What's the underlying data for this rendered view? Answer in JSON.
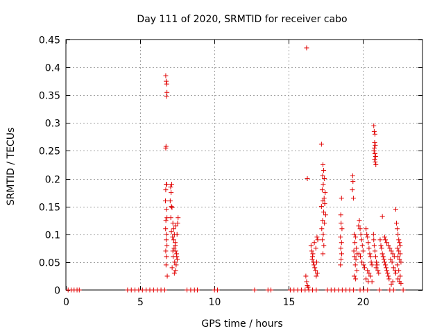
{
  "chart_data": {
    "type": "scatter",
    "title": "Day 111 of 2020, SRMTID for receiver cabo",
    "xlabel": "GPS time / hours",
    "ylabel": "SRMTID / TECUs",
    "xlim": [
      0,
      24
    ],
    "ylim": [
      0,
      0.45
    ],
    "grid": true,
    "x_ticks": [
      0,
      5,
      10,
      15,
      20
    ],
    "x_tick_labels": [
      "0",
      "5",
      "10",
      "15",
      "20"
    ],
    "y_ticks": [
      0,
      0.05,
      0.1,
      0.15,
      0.2,
      0.25,
      0.3,
      0.35,
      0.4,
      0.45
    ],
    "y_tick_labels": [
      "0",
      "0.05",
      "0.1",
      "0.15",
      "0.2",
      "0.25",
      "0.3",
      "0.35",
      "0.4",
      "0.45"
    ],
    "marker": "+",
    "color": "#e00000",
    "series": [
      {
        "name": "SRMTID",
        "points": [
          [
            0.15,
            0
          ],
          [
            0.35,
            0
          ],
          [
            0.55,
            0
          ],
          [
            0.75,
            0
          ],
          [
            0.9,
            0
          ],
          [
            4.15,
            0
          ],
          [
            4.4,
            0
          ],
          [
            4.65,
            0
          ],
          [
            4.9,
            0
          ],
          [
            5.15,
            0
          ],
          [
            5.4,
            0
          ],
          [
            5.65,
            0
          ],
          [
            5.9,
            0
          ],
          [
            6.15,
            0
          ],
          [
            6.4,
            0
          ],
          [
            6.65,
            0
          ],
          [
            8.15,
            0
          ],
          [
            8.4,
            0
          ],
          [
            8.65,
            0
          ],
          [
            8.85,
            0
          ],
          [
            10.0,
            0
          ],
          [
            10.2,
            0
          ],
          [
            12.7,
            0
          ],
          [
            13.6,
            0
          ],
          [
            13.8,
            0
          ],
          [
            15.1,
            0
          ],
          [
            15.35,
            0
          ],
          [
            15.6,
            0
          ],
          [
            15.85,
            0
          ],
          [
            16.1,
            0
          ],
          [
            16.35,
            0
          ],
          [
            16.6,
            0
          ],
          [
            16.85,
            0
          ],
          [
            17.6,
            0
          ],
          [
            17.85,
            0
          ],
          [
            18.1,
            0
          ],
          [
            18.35,
            0
          ],
          [
            18.6,
            0
          ],
          [
            18.85,
            0
          ],
          [
            19.1,
            0
          ],
          [
            19.35,
            0
          ],
          [
            19.8,
            0
          ],
          [
            20.05,
            0
          ],
          [
            20.3,
            0
          ],
          [
            21.1,
            0
          ],
          [
            21.8,
            0
          ],
          [
            22.05,
            0
          ],
          [
            22.7,
            0
          ],
          [
            6.72,
            0.385
          ],
          [
            6.75,
            0.375
          ],
          [
            6.78,
            0.37
          ],
          [
            6.8,
            0.355
          ],
          [
            6.77,
            0.348
          ],
          [
            6.74,
            0.258
          ],
          [
            6.72,
            0.255
          ],
          [
            6.75,
            0.19
          ],
          [
            6.78,
            0.19
          ],
          [
            6.72,
            0.18
          ],
          [
            6.7,
            0.16
          ],
          [
            6.76,
            0.145
          ],
          [
            6.8,
            0.13
          ],
          [
            6.73,
            0.125
          ],
          [
            6.71,
            0.11
          ],
          [
            6.78,
            0.1
          ],
          [
            6.75,
            0.09
          ],
          [
            6.8,
            0.08
          ],
          [
            6.72,
            0.07
          ],
          [
            6.77,
            0.06
          ],
          [
            6.74,
            0.045
          ],
          [
            6.82,
            0.025
          ],
          [
            7.05,
            0.185
          ],
          [
            7.12,
            0.19
          ],
          [
            7.08,
            0.175
          ],
          [
            7.02,
            0.16
          ],
          [
            7.1,
            0.15
          ],
          [
            7.14,
            0.148
          ],
          [
            7.06,
            0.13
          ],
          [
            7.2,
            0.12
          ],
          [
            7.25,
            0.11
          ],
          [
            7.3,
            0.1
          ],
          [
            7.18,
            0.095
          ],
          [
            7.35,
            0.085
          ],
          [
            7.28,
            0.075
          ],
          [
            7.4,
            0.07
          ],
          [
            7.45,
            0.065
          ],
          [
            7.22,
            0.06
          ],
          [
            7.5,
            0.055
          ],
          [
            7.32,
            0.05
          ],
          [
            7.42,
            0.045
          ],
          [
            7.15,
            0.04
          ],
          [
            7.38,
            0.035
          ],
          [
            7.55,
            0.13
          ],
          [
            7.52,
            0.12
          ],
          [
            7.48,
            0.1
          ],
          [
            7.26,
            0.09
          ],
          [
            7.36,
            0.08
          ],
          [
            7.46,
            0.06
          ],
          [
            7.3,
            0.03
          ],
          [
            7.2,
            0.07
          ],
          [
            7.1,
            0.105
          ],
          [
            7.4,
            0.115
          ],
          [
            16.2,
            0.435
          ],
          [
            16.25,
            0.2
          ],
          [
            16.15,
            0.025
          ],
          [
            16.2,
            0.015
          ],
          [
            16.25,
            0.008
          ],
          [
            16.3,
            0.005
          ],
          [
            16.5,
            0.08
          ],
          [
            16.55,
            0.07
          ],
          [
            16.6,
            0.06
          ],
          [
            16.65,
            0.05
          ],
          [
            16.7,
            0.045
          ],
          [
            16.75,
            0.04
          ],
          [
            16.8,
            0.035
          ],
          [
            16.85,
            0.025
          ],
          [
            16.9,
            0.095
          ],
          [
            16.95,
            0.09
          ],
          [
            16.72,
            0.085
          ],
          [
            16.82,
            0.075
          ],
          [
            16.62,
            0.065
          ],
          [
            16.58,
            0.055
          ],
          [
            16.88,
            0.05
          ],
          [
            16.92,
            0.03
          ],
          [
            17.2,
            0.262
          ],
          [
            17.3,
            0.225
          ],
          [
            17.35,
            0.215
          ],
          [
            17.28,
            0.205
          ],
          [
            17.4,
            0.2
          ],
          [
            17.32,
            0.19
          ],
          [
            17.25,
            0.18
          ],
          [
            17.45,
            0.175
          ],
          [
            17.38,
            0.165
          ],
          [
            17.3,
            0.16
          ],
          [
            17.42,
            0.155
          ],
          [
            17.2,
            0.15
          ],
          [
            17.35,
            0.14
          ],
          [
            17.48,
            0.135
          ],
          [
            17.28,
            0.125
          ],
          [
            17.4,
            0.12
          ],
          [
            17.32,
            0.1
          ],
          [
            17.26,
            0.09
          ],
          [
            17.36,
            0.08
          ],
          [
            17.3,
            0.065
          ],
          [
            17.22,
            0.11
          ],
          [
            18.55,
            0.165
          ],
          [
            18.5,
            0.135
          ],
          [
            18.52,
            0.12
          ],
          [
            18.58,
            0.11
          ],
          [
            18.48,
            0.095
          ],
          [
            18.55,
            0.085
          ],
          [
            18.5,
            0.075
          ],
          [
            18.56,
            0.065
          ],
          [
            18.52,
            0.055
          ],
          [
            18.48,
            0.045
          ],
          [
            19.3,
            0.205
          ],
          [
            19.32,
            0.195
          ],
          [
            19.28,
            0.18
          ],
          [
            19.35,
            0.165
          ],
          [
            19.4,
            0.1
          ],
          [
            19.5,
            0.095
          ],
          [
            19.45,
            0.085
          ],
          [
            19.55,
            0.075
          ],
          [
            19.38,
            0.07
          ],
          [
            19.6,
            0.065
          ],
          [
            19.42,
            0.06
          ],
          [
            19.52,
            0.055
          ],
          [
            19.48,
            0.045
          ],
          [
            19.58,
            0.035
          ],
          [
            19.4,
            0.025
          ],
          [
            19.5,
            0.02
          ],
          [
            19.7,
            0.115
          ],
          [
            19.75,
            0.125
          ],
          [
            19.8,
            0.11
          ],
          [
            19.85,
            0.1
          ],
          [
            19.9,
            0.09
          ],
          [
            19.95,
            0.08
          ],
          [
            20.0,
            0.07
          ],
          [
            19.72,
            0.065
          ],
          [
            19.82,
            0.06
          ],
          [
            19.92,
            0.05
          ],
          [
            20.05,
            0.045
          ],
          [
            20.1,
            0.04
          ],
          [
            20.2,
            0.11
          ],
          [
            20.25,
            0.1
          ],
          [
            20.3,
            0.095
          ],
          [
            20.35,
            0.085
          ],
          [
            20.4,
            0.075
          ],
          [
            20.45,
            0.065
          ],
          [
            20.5,
            0.06
          ],
          [
            20.55,
            0.05
          ],
          [
            20.6,
            0.045
          ],
          [
            20.3,
            0.035
          ],
          [
            20.4,
            0.03
          ],
          [
            20.5,
            0.025
          ],
          [
            20.2,
            0.02
          ],
          [
            20.35,
            0.015
          ],
          [
            20.6,
            0.015
          ],
          [
            20.72,
            0.295
          ],
          [
            20.75,
            0.285
          ],
          [
            20.8,
            0.28
          ],
          [
            20.78,
            0.265
          ],
          [
            20.82,
            0.26
          ],
          [
            20.76,
            0.255
          ],
          [
            20.74,
            0.25
          ],
          [
            20.8,
            0.245
          ],
          [
            20.84,
            0.24
          ],
          [
            20.78,
            0.235
          ],
          [
            20.82,
            0.23
          ],
          [
            20.86,
            0.225
          ],
          [
            20.7,
            0.1
          ],
          [
            20.72,
            0.09
          ],
          [
            20.75,
            0.08
          ],
          [
            20.8,
            0.07
          ],
          [
            20.85,
            0.06
          ],
          [
            20.9,
            0.05
          ],
          [
            20.95,
            0.045
          ],
          [
            20.88,
            0.04
          ],
          [
            21.0,
            0.035
          ],
          [
            21.05,
            0.03
          ],
          [
            21.15,
            0.09
          ],
          [
            21.2,
            0.08
          ],
          [
            21.25,
            0.075
          ],
          [
            21.3,
            0.065
          ],
          [
            21.35,
            0.06
          ],
          [
            21.4,
            0.055
          ],
          [
            21.45,
            0.05
          ],
          [
            21.5,
            0.045
          ],
          [
            21.55,
            0.04
          ],
          [
            21.6,
            0.035
          ],
          [
            21.65,
            0.03
          ],
          [
            21.7,
            0.025
          ],
          [
            21.3,
            0.132
          ],
          [
            21.45,
            0.095
          ],
          [
            21.5,
            0.09
          ],
          [
            21.6,
            0.085
          ],
          [
            21.7,
            0.08
          ],
          [
            21.8,
            0.075
          ],
          [
            21.9,
            0.07
          ],
          [
            22.0,
            0.065
          ],
          [
            22.1,
            0.06
          ],
          [
            21.85,
            0.055
          ],
          [
            21.95,
            0.05
          ],
          [
            22.05,
            0.04
          ],
          [
            22.15,
            0.035
          ],
          [
            22.2,
            0.03
          ],
          [
            21.75,
            0.02
          ],
          [
            22.0,
            0.015
          ],
          [
            21.9,
            0.01
          ],
          [
            22.2,
            0.145
          ],
          [
            22.25,
            0.12
          ],
          [
            22.3,
            0.11
          ],
          [
            22.35,
            0.1
          ],
          [
            22.4,
            0.09
          ],
          [
            22.45,
            0.085
          ],
          [
            22.5,
            0.08
          ],
          [
            22.3,
            0.075
          ],
          [
            22.4,
            0.07
          ],
          [
            22.5,
            0.065
          ],
          [
            22.35,
            0.06
          ],
          [
            22.45,
            0.055
          ],
          [
            22.55,
            0.05
          ],
          [
            22.3,
            0.045
          ],
          [
            22.4,
            0.035
          ],
          [
            22.5,
            0.025
          ],
          [
            22.35,
            0.02
          ],
          [
            22.45,
            0.015
          ],
          [
            22.55,
            0.012
          ]
        ]
      }
    ]
  }
}
